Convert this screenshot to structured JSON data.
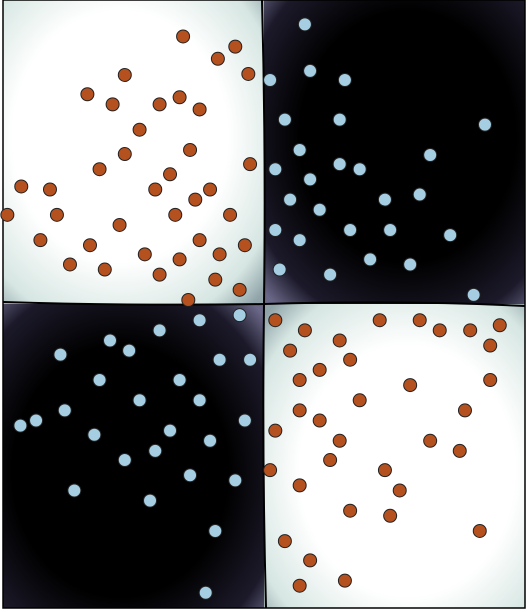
{
  "chart_data": {
    "type": "scatter",
    "xlim": [
      -3,
      3
    ],
    "ylim": [
      -3,
      3
    ],
    "series": [
      {
        "color": "#b5501f",
        "x": [
          -0.93,
          -1.6,
          -2.03,
          -1.74,
          -1.2,
          -2.79,
          -2.46,
          -2.57,
          -2.95,
          -2.38,
          -0.33,
          -0.53,
          -0.18,
          -0.97,
          -0.74,
          -1.43,
          -0.85,
          -1.6,
          -1.89,
          -1.25,
          -0.62,
          -0.39,
          -1.02,
          -1.66,
          -2.0,
          -1.37,
          -0.74,
          -0.22,
          -2.23,
          -1.2,
          -0.56,
          -1.83,
          -0.87,
          -0.28,
          -0.97,
          -0.51,
          -0.79,
          -0.16,
          -1.08,
          0.13,
          0.47,
          0.87,
          1.33,
          1.79,
          2.37,
          2.71,
          2.6,
          2.02,
          1.68,
          1.1,
          0.41,
          0.64,
          0.13,
          2.31,
          1.91,
          1.39,
          2.25,
          1.56,
          0.99,
          1.45,
          0.41,
          0.76,
          0.24,
          0.53,
          0.93,
          0.41,
          2.48,
          2.6,
          0.07,
          0.3,
          0.64,
          0.99,
          0.41,
          0.87
        ],
        "values": [
          2.64,
          2.26,
          2.07,
          1.97,
          1.97,
          1.16,
          1.13,
          0.63,
          0.88,
          0.88,
          2.54,
          2.42,
          2.27,
          2.04,
          1.92,
          1.72,
          1.52,
          1.48,
          1.33,
          1.13,
          1.13,
          0.88,
          0.88,
          0.78,
          0.58,
          0.49,
          0.63,
          0.58,
          0.39,
          0.29,
          0.24,
          0.34,
          0.04,
          0.14,
          0.44,
          0.49,
          1.03,
          1.38,
          1.28,
          -0.16,
          -0.26,
          -0.36,
          -0.16,
          -0.16,
          -0.26,
          -0.21,
          -0.41,
          -0.26,
          -0.8,
          -0.95,
          -0.75,
          -1.15,
          -1.25,
          -1.05,
          -1.35,
          -1.64,
          -1.45,
          -1.84,
          -2.04,
          -2.09,
          -1.79,
          -1.54,
          -2.34,
          -2.53,
          -2.73,
          -2.78,
          -2.24,
          -0.75,
          -1.64,
          -0.46,
          -0.65,
          -0.55,
          -1.05,
          -1.35
        ]
      },
      {
        "color": "#a6cee3",
        "x": [
          0.47,
          0.53,
          0.93,
          0.07,
          0.24,
          0.87,
          2.54,
          1.91,
          0.41,
          1.1,
          0.13,
          1.39,
          1.79,
          0.64,
          0.3,
          2.14,
          0.99,
          0.41,
          1.68,
          1.22,
          0.18,
          0.76,
          2.41,
          1.45,
          0.13,
          0.53,
          0.87,
          -2.8,
          -2.29,
          -1.89,
          -1.55,
          -1.2,
          -0.74,
          -0.28,
          -0.51,
          -0.97,
          -1.43,
          -1.95,
          -2.18,
          -1.6,
          -1.08,
          -0.62,
          -0.22,
          -1.31,
          -0.33,
          -0.85,
          -0.56,
          -0.67,
          -1.77,
          -0.16,
          -0.74,
          -1.25,
          -2.34,
          -2.62
        ],
        "values": [
          2.76,
          2.3,
          2.21,
          2.21,
          1.82,
          1.82,
          1.77,
          1.47,
          1.52,
          1.33,
          1.33,
          1.03,
          1.08,
          0.93,
          1.03,
          0.68,
          0.73,
          0.63,
          0.39,
          0.44,
          0.34,
          0.29,
          0.09,
          0.73,
          0.73,
          1.23,
          1.38,
          -1.2,
          -1.05,
          -0.75,
          -0.46,
          -0.26,
          -0.16,
          -0.11,
          -0.55,
          -0.75,
          -0.95,
          -1.29,
          -1.84,
          -1.54,
          -1.25,
          -1.35,
          -1.15,
          -1.94,
          -1.74,
          -1.69,
          -2.24,
          -2.85,
          -0.36,
          -0.55,
          -0.95,
          -1.45,
          -0.5,
          -1.15
        ]
      }
    ]
  }
}
